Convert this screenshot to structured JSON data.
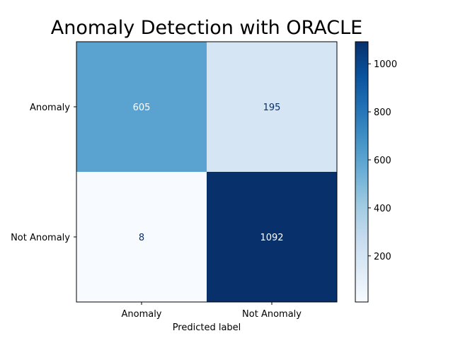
{
  "chart_data": {
    "type": "heatmap",
    "title": "Anomaly Detection with ORACLE",
    "xlabel": "Predicted label",
    "ylabel": "",
    "x_categories": [
      "Anomaly",
      "Not Anomaly"
    ],
    "y_categories": [
      "Anomaly",
      "Not Anomaly"
    ],
    "values": [
      [
        605,
        195
      ],
      [
        8,
        1092
      ]
    ],
    "colormap": "Blues",
    "colorbar": {
      "range": [
        8,
        1092
      ],
      "ticks": [
        200,
        400,
        600,
        800,
        1000
      ]
    },
    "grid": false
  }
}
